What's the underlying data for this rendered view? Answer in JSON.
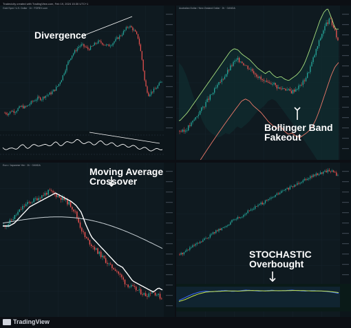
{
  "header_text": "Tradecicity created with TradingView.com, Feb 19, 2024 15:30 UTC+1",
  "footer": {
    "brand": "TradingView"
  },
  "colors": {
    "bull": "#26a69a",
    "bear": "#ef5350",
    "panel_bg": "#0f1a20",
    "annotation": "#ffffff"
  },
  "panels": [
    {
      "title": "Gold Spot / U.S. Dollar · 1h · FOREX.com",
      "annotation": "Divergence"
    },
    {
      "title": "Australian Dollar / New Zealand Dollar · 2h · OANDA",
      "annotation_line1": "Bollinger Band",
      "annotation_line2": "Fakeout"
    },
    {
      "title": "Euro / Japanese Yen · 2h · OANDA",
      "annotation_line1": "Moving Average",
      "annotation_line2": "Crossover"
    },
    {
      "title": "",
      "annotation_line1": "STOCHASTIC",
      "annotation_line2": "Overbought"
    }
  ],
  "chart_data": [
    {
      "type": "candlestick",
      "title": "Gold Spot / U.S. Dollar · 1h · FOREX.com",
      "annotation": "Divergence",
      "price_trend": [
        0.08,
        0.07,
        0.1,
        0.09,
        0.12,
        0.14,
        0.13,
        0.15,
        0.18,
        0.2,
        0.22,
        0.21,
        0.24,
        0.25,
        0.27,
        0.3,
        0.34,
        0.4,
        0.48,
        0.56,
        0.62,
        0.66,
        0.7,
        0.72,
        0.7,
        0.68,
        0.7,
        0.73,
        0.75,
        0.74,
        0.72,
        0.71,
        0.73,
        0.76,
        0.79,
        0.82,
        0.86,
        0.9,
        0.88,
        0.84,
        0.78,
        0.6,
        0.35,
        0.25,
        0.28,
        0.3,
        0.34,
        0.38
      ],
      "oscillator": "RSI",
      "rsi": [
        0.45,
        0.4,
        0.35,
        0.42,
        0.5,
        0.55,
        0.48,
        0.52,
        0.58,
        0.62,
        0.55,
        0.6,
        0.65,
        0.7,
        0.62,
        0.68,
        0.72,
        0.8,
        0.85,
        0.78,
        0.74,
        0.7,
        0.66,
        0.72,
        0.76,
        0.7,
        0.64,
        0.66,
        0.6,
        0.56,
        0.58,
        0.54,
        0.5,
        0.46,
        0.42,
        0.38,
        0.35,
        0.3,
        0.36,
        0.42
      ]
    },
    {
      "type": "candlestick",
      "title": "Australian Dollar / New Zealand Dollar · 2h · OANDA",
      "annotation": "Bollinger Band Fakeout",
      "price_trend": [
        0.15,
        0.14,
        0.17,
        0.2,
        0.24,
        0.28,
        0.32,
        0.36,
        0.4,
        0.44,
        0.48,
        0.52,
        0.56,
        0.6,
        0.64,
        0.66,
        0.65,
        0.62,
        0.6,
        0.58,
        0.55,
        0.52,
        0.5,
        0.48,
        0.5,
        0.47,
        0.45,
        0.46,
        0.44,
        0.43,
        0.45,
        0.47,
        0.5,
        0.55,
        0.62,
        0.7,
        0.78,
        0.86,
        0.92,
        0.95,
        0.88,
        0.8
      ],
      "bands": [
        "upper",
        "lower"
      ]
    },
    {
      "type": "candlestick",
      "title": "Euro / Japanese Yen · 2h · OANDA",
      "annotation": "Moving Average Crossover",
      "price_trend": [
        0.6,
        0.62,
        0.66,
        0.7,
        0.74,
        0.76,
        0.78,
        0.8,
        0.82,
        0.84,
        0.82,
        0.8,
        0.78,
        0.75,
        0.7,
        0.6,
        0.52,
        0.48,
        0.44,
        0.4,
        0.36,
        0.32,
        0.3,
        0.25,
        0.2,
        0.18,
        0.16,
        0.14,
        0.12,
        0.15,
        0.13,
        0.1
      ],
      "moving_averages": [
        "fast",
        "slow"
      ]
    },
    {
      "type": "candlestick",
      "title": "",
      "annotation": "STOCHASTIC Overbought",
      "price_trend": [
        0.05,
        0.08,
        0.12,
        0.15,
        0.18,
        0.22,
        0.26,
        0.3,
        0.32,
        0.36,
        0.4,
        0.44,
        0.46,
        0.5,
        0.54,
        0.57,
        0.6,
        0.63,
        0.66,
        0.7,
        0.73,
        0.76,
        0.78,
        0.82,
        0.85,
        0.88,
        0.9,
        0.92,
        0.94,
        0.96,
        0.95,
        0.9
      ],
      "oscillator": "Stochastic",
      "stoch_k": [
        0.4,
        0.55,
        0.7,
        0.8,
        0.85,
        0.82,
        0.86,
        0.88,
        0.84,
        0.86,
        0.9,
        0.88,
        0.85,
        0.87,
        0.89,
        0.86,
        0.88,
        0.9,
        0.87,
        0.85,
        0.88,
        0.86,
        0.84,
        0.8,
        0.74
      ],
      "stoch_d": [
        0.35,
        0.45,
        0.6,
        0.72,
        0.8,
        0.83,
        0.84,
        0.86,
        0.86,
        0.85,
        0.87,
        0.88,
        0.87,
        0.86,
        0.87,
        0.87,
        0.87,
        0.88,
        0.88,
        0.87,
        0.86,
        0.86,
        0.85,
        0.82,
        0.78
      ]
    }
  ]
}
